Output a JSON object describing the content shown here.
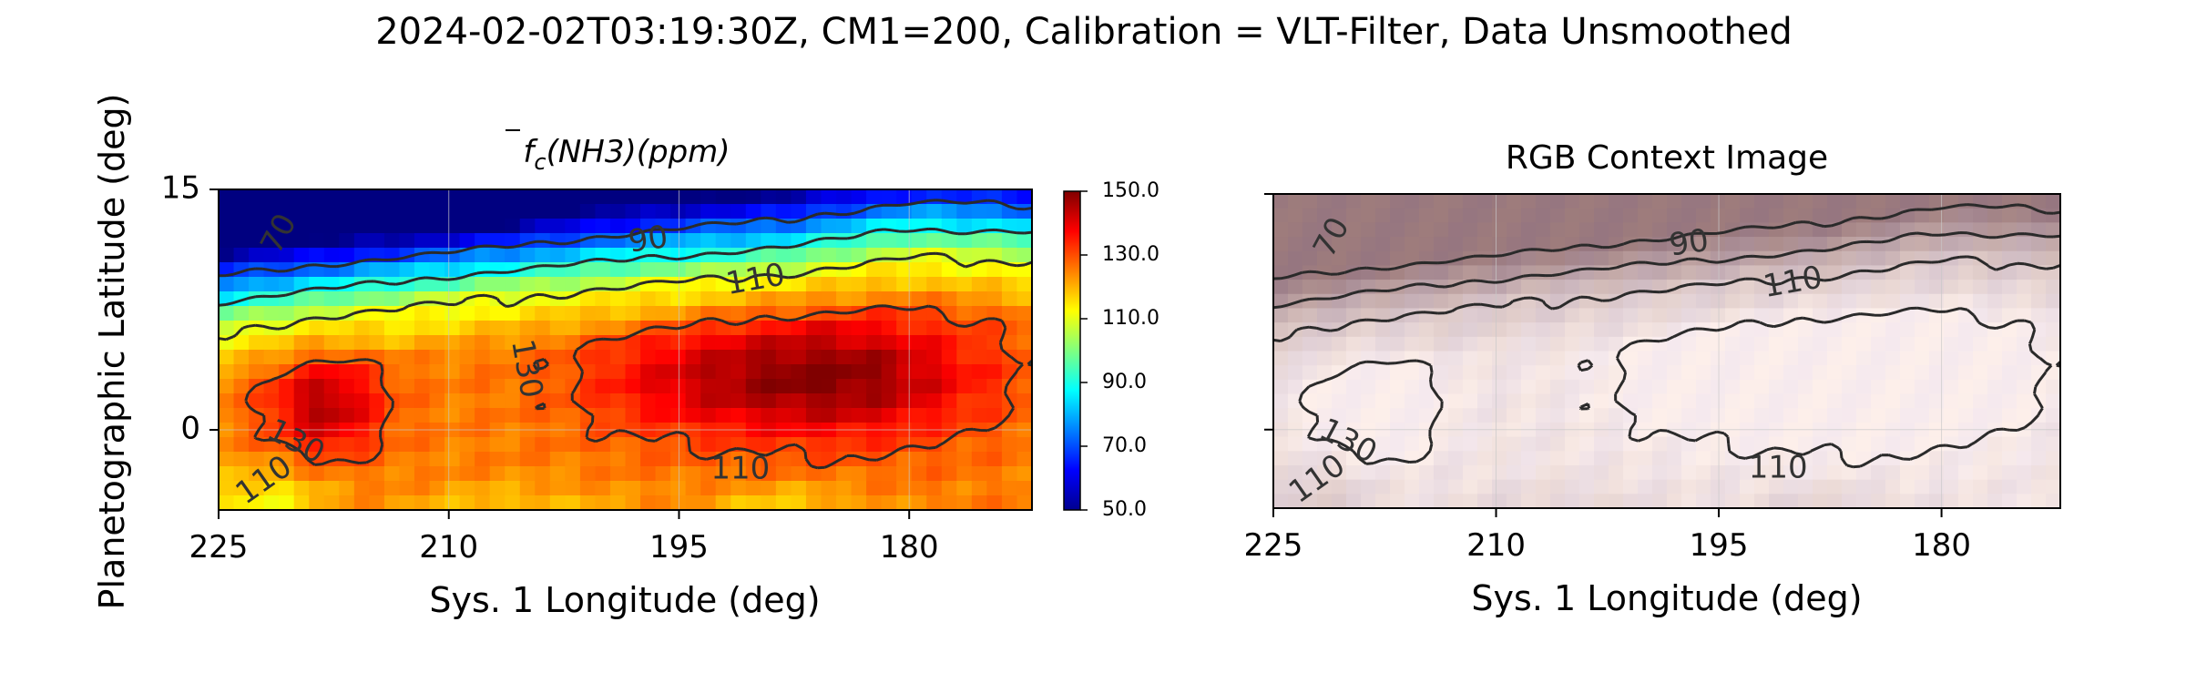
{
  "figure_title": "2024-02-02T03:19:30Z, CM1=200, Calibration = VLT-Filter, Data Unsmoothed",
  "colors": {
    "contour_line": "#2a2a2a",
    "frame": "#000000"
  },
  "chart_data": [
    {
      "type": "heatmap",
      "title": "f̄c(NH3)(ppm)",
      "title_parts": {
        "symbol": "f",
        "subscript": "c",
        "rest": "(NH3)(ppm)"
      },
      "xlabel": "Sys. 1 Longitude (deg)",
      "ylabel": "Planetographic Latitude (deg)",
      "xlim": [
        225,
        172
      ],
      "ylim": [
        -5,
        15
      ],
      "xticks": [
        "225",
        "210",
        "195",
        "180"
      ],
      "yticks": [
        "15",
        "0"
      ],
      "grid": true,
      "colormap": "jet",
      "colorbar": {
        "range": [
          50,
          150
        ],
        "ticks": [
          "150.0",
          "130.0",
          "110.0",
          "90.0",
          "70.0",
          "50.0"
        ]
      },
      "field_model": "ammonia mole fraction estimated on a grid of longitude (225 to 172) by latitude (-5 to 15): low near 15, peak near 185 longitude at 3 latitude",
      "contour_levels": [
        70,
        90,
        110,
        130
      ],
      "contour_labels": [
        "70",
        "90",
        "110",
        "130",
        "110",
        "110"
      ]
    },
    {
      "type": "heatmap",
      "title": "RGB Context Image",
      "xlabel": "Sys. 1 Longitude (deg)",
      "xlim": [
        225,
        172
      ],
      "ylim": [
        -5,
        15
      ],
      "xticks": [
        "225",
        "210",
        "195",
        "180"
      ],
      "grid": true,
      "contour_levels": [
        70,
        90,
        110,
        130
      ],
      "contour_labels": [
        "70",
        "90",
        "110",
        "130",
        "110",
        "110"
      ]
    }
  ]
}
